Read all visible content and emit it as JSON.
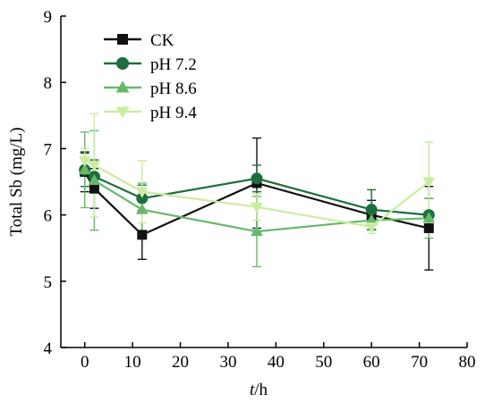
{
  "chart_data": {
    "type": "line",
    "title": "",
    "xlabel_italic": "t",
    "xlabel_rest": "/h",
    "ylabel": "Total Sb (mg/L)",
    "xlim": [
      -5,
      80
    ],
    "ylim": [
      4,
      9
    ],
    "xticks": [
      0,
      10,
      20,
      30,
      40,
      50,
      60,
      70,
      80
    ],
    "yticks": [
      4,
      5,
      6,
      7,
      8,
      9
    ],
    "grid": false,
    "legend": "top-left",
    "series": [
      {
        "name": "CK",
        "marker": "square",
        "color": "#111111",
        "x": [
          0,
          2,
          12,
          36,
          60,
          72
        ],
        "y": [
          6.65,
          6.4,
          5.7,
          6.48,
          6.0,
          5.8
        ],
        "err": [
          0.3,
          0.3,
          0.37,
          0.68,
          0.22,
          0.63
        ]
      },
      {
        "name": "pH 7.2",
        "marker": "circle",
        "color": "#1d6e3b",
        "x": [
          0,
          2,
          12,
          36,
          60,
          72
        ],
        "y": [
          6.68,
          6.58,
          6.25,
          6.55,
          6.08,
          6.0
        ],
        "err": [
          0.25,
          0.25,
          0.2,
          0.2,
          0.3,
          0.25
        ]
      },
      {
        "name": "pH 8.6",
        "marker": "triangle-up",
        "color": "#66b96a",
        "x": [
          0,
          2,
          12,
          36,
          60,
          72
        ],
        "y": [
          6.68,
          6.52,
          6.08,
          5.75,
          5.92,
          5.95
        ],
        "err": [
          0.57,
          0.75,
          0.4,
          0.53,
          0.15,
          0.3
        ]
      },
      {
        "name": "pH 9.4",
        "marker": "triangle-down",
        "color": "#c9eda0",
        "x": [
          0,
          2,
          12,
          36,
          60,
          72
        ],
        "y": [
          6.82,
          6.75,
          6.35,
          6.12,
          5.82,
          6.5
        ],
        "err": [
          0.18,
          0.78,
          0.47,
          0.2,
          0.1,
          0.6
        ]
      }
    ]
  }
}
